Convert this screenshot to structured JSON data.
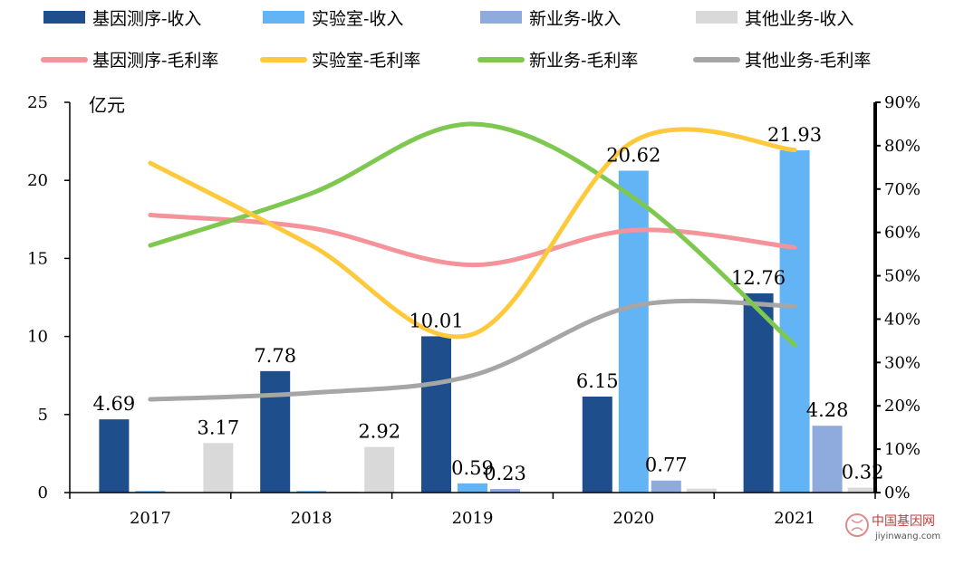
{
  "chart_data": {
    "type": "bar",
    "categories": [
      "2017",
      "2018",
      "2019",
      "2020",
      "2021"
    ],
    "bar_series": [
      {
        "name": "基因测序-收入",
        "color": "#1F4E8C",
        "values": [
          4.69,
          7.78,
          10.01,
          6.15,
          12.76
        ],
        "labels": [
          "4.69",
          "7.78",
          "10.01",
          "6.15",
          "12.76"
        ]
      },
      {
        "name": "实验室-收入",
        "color": "#63B4F5",
        "values": [
          0.1,
          0.1,
          0.59,
          20.62,
          21.93
        ],
        "labels": [
          "",
          "",
          "0.59",
          "20.62",
          "21.93"
        ]
      },
      {
        "name": "新业务-收入",
        "color": "#8FAADC",
        "values": [
          0,
          0.05,
          0.23,
          0.77,
          4.28
        ],
        "labels": [
          "",
          "",
          "0.23",
          "0.77",
          "4.28"
        ]
      },
      {
        "name": "其他业务-收入",
        "color": "#D9D9D9",
        "values": [
          3.17,
          2.92,
          0,
          0.25,
          0.32
        ],
        "labels": [
          "3.17",
          "2.92",
          "",
          "",
          "0.32"
        ]
      }
    ],
    "line_series": [
      {
        "name": "基因测序-毛利率",
        "color": "#F4939A",
        "values": [
          0.64,
          0.61,
          0.525,
          0.605,
          0.565
        ]
      },
      {
        "name": "实验室-毛利率",
        "color": "#FFC93C",
        "values": [
          0.76,
          0.57,
          0.365,
          0.81,
          0.79
        ]
      },
      {
        "name": "新业务-毛利率",
        "color": "#7FC850",
        "values": [
          0.57,
          0.69,
          0.85,
          0.68,
          0.34
        ]
      },
      {
        "name": "其他业务-毛利率",
        "color": "#A6A6A6",
        "values": [
          0.215,
          0.23,
          0.27,
          0.43,
          0.43
        ]
      }
    ],
    "y_left": {
      "unit": "亿元",
      "ylim": [
        0,
        25
      ],
      "ticks": [
        "0",
        "5",
        "10",
        "15",
        "20",
        "25"
      ]
    },
    "y_right": {
      "ylim": [
        0,
        0.9
      ],
      "ticks": [
        "0%",
        "10%",
        "20%",
        "30%",
        "40%",
        "50%",
        "60%",
        "70%",
        "80%",
        "90%"
      ]
    },
    "grid": false,
    "legend": "top"
  },
  "watermark": {
    "cn": "中国基因网",
    "en": "jiyinwang.com"
  }
}
